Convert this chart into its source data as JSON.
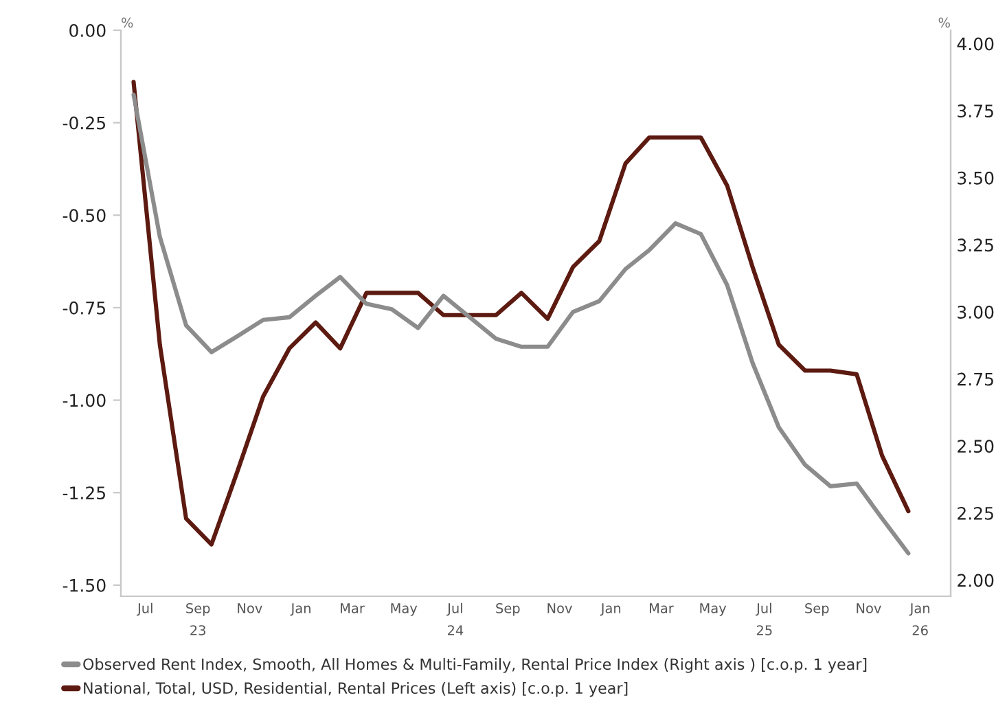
{
  "chart_data": {
    "type": "line",
    "ylabel": "%",
    "y2label": "%",
    "x": [
      "2023-07",
      "2023-08",
      "2023-09",
      "2023-10",
      "2023-11",
      "2023-12",
      "2024-01",
      "2024-02",
      "2024-03",
      "2024-04",
      "2024-05",
      "2024-06",
      "2024-07",
      "2024-08",
      "2024-09",
      "2024-10",
      "2024-11",
      "2024-12",
      "2025-01",
      "2025-02",
      "2025-03",
      "2025-04",
      "2025-05",
      "2025-06",
      "2025-07",
      "2025-08",
      "2025-09",
      "2025-10",
      "2025-11",
      "2025-12",
      "2026-01"
    ],
    "series": [
      {
        "name": "Observed Rent Index, Smooth, All Homes & Multi-Family, Rental Price Index (Right axis ) [c.o.p. 1 year]",
        "color": "#8c8c8c",
        "axis": "y2",
        "values": [
          3.81,
          3.28,
          2.95,
          2.85,
          2.91,
          2.97,
          2.98,
          3.06,
          3.13,
          3.03,
          3.01,
          2.94,
          3.06,
          2.98,
          2.9,
          2.87,
          2.87,
          3.0,
          3.04,
          3.16,
          3.23,
          3.33,
          3.29,
          3.1,
          2.81,
          2.57,
          2.43,
          2.35,
          2.36,
          2.23,
          2.1
        ]
      },
      {
        "name": "National, Total, USD, Residential, Rental Prices (Left axis) [c.o.p. 1 year]",
        "color": "#5c1a10",
        "values": [
          -0.14,
          -0.85,
          -1.32,
          -1.39,
          -1.19,
          -0.99,
          -0.86,
          -0.79,
          -0.86,
          -0.71,
          -0.71,
          -0.71,
          -0.77,
          -0.77,
          -0.77,
          -0.71,
          -0.78,
          -0.64,
          -0.57,
          -0.36,
          -0.29,
          -0.29,
          -0.29,
          -0.42,
          -0.64,
          -0.85,
          -0.92,
          -0.92,
          -0.93,
          -1.15,
          -1.3
        ]
      }
    ],
    "xlim": [
      "2023-06-16",
      "2026-02-20"
    ],
    "xticks": [
      {
        "value": "2023-07-15",
        "label": "Jul"
      },
      {
        "value": "2023-09-15",
        "label": "Sep\n23"
      },
      {
        "value": "2023-11-15",
        "label": "Nov"
      },
      {
        "value": "2024-01-15",
        "label": "Jan"
      },
      {
        "value": "2024-03-15",
        "label": "Mar"
      },
      {
        "value": "2024-05-15",
        "label": "May"
      },
      {
        "value": "2024-07-15",
        "label": "Jul\n24"
      },
      {
        "value": "2024-09-15",
        "label": "Sep"
      },
      {
        "value": "2024-11-15",
        "label": "Nov"
      },
      {
        "value": "2025-01-15",
        "label": "Jan"
      },
      {
        "value": "2025-03-15",
        "label": "Mar"
      },
      {
        "value": "2025-05-15",
        "label": "May"
      },
      {
        "value": "2025-07-15",
        "label": "Jul\n25"
      },
      {
        "value": "2025-09-15",
        "label": "Sep"
      },
      {
        "value": "2025-11-15",
        "label": "Nov"
      },
      {
        "value": "2026-01-15",
        "label": "Jan\n26"
      }
    ],
    "ylim": [
      -1.53,
      0.0
    ],
    "yticks": [
      {
        "value": 0,
        "label": "0.00"
      },
      {
        "value": -0.25,
        "label": "-0.25"
      },
      {
        "value": -0.5,
        "label": "-0.50"
      },
      {
        "value": -0.75,
        "label": "-0.75"
      },
      {
        "value": -1.0,
        "label": "-1.00"
      },
      {
        "value": -1.25,
        "label": "-1.25"
      },
      {
        "value": -1.5,
        "label": "-1.50"
      }
    ],
    "y2lim": [
      1.94,
      4.05
    ],
    "y2ticks": [
      {
        "value": 2.0,
        "label": "2.00"
      },
      {
        "value": 2.25,
        "label": "2.25"
      },
      {
        "value": 2.5,
        "label": "2.50"
      },
      {
        "value": 2.75,
        "label": "2.75"
      },
      {
        "value": 3.0,
        "label": "3.00"
      },
      {
        "value": 3.25,
        "label": "3.25"
      },
      {
        "value": 3.5,
        "label": "3.50"
      },
      {
        "value": 3.75,
        "label": "3.75"
      },
      {
        "value": 4.0,
        "label": "4.00"
      }
    ],
    "grid": false,
    "legend": "bottom",
    "marker": "none",
    "line_style": "solid"
  }
}
